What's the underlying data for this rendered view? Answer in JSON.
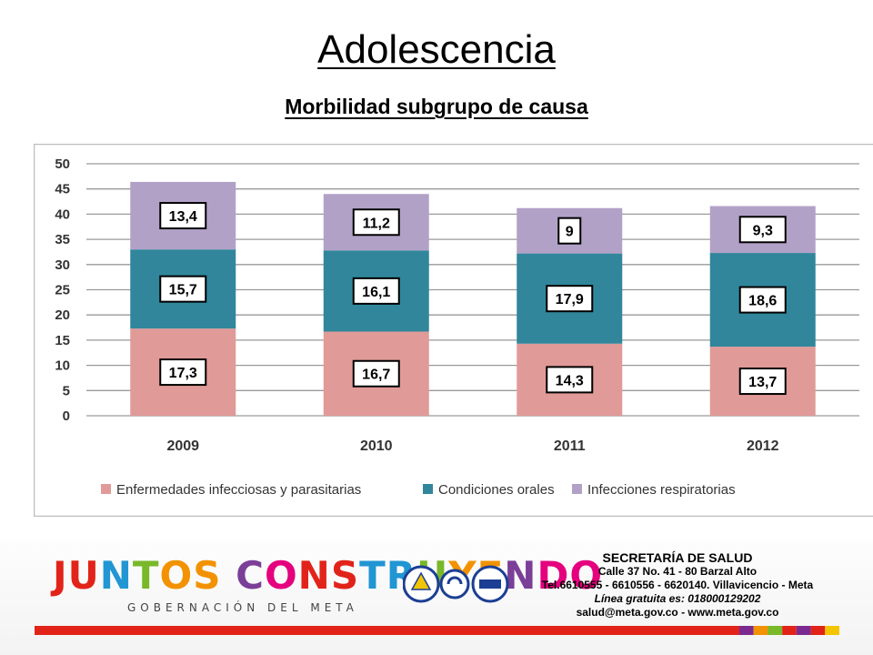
{
  "slide": {
    "title": "Adolescencia",
    "subtitle": "Morbilidad subgrupo de causa"
  },
  "chart_data": {
    "type": "bar",
    "stacked": true,
    "categories": [
      "2009",
      "2010",
      "2011",
      "2012"
    ],
    "series": [
      {
        "name": "Enfermedades infecciosas y parasitarias",
        "color": "#e09a98",
        "values": [
          17.3,
          16.7,
          14.3,
          13.7
        ],
        "labels": [
          "17,3",
          "16,7",
          "14,3",
          "13,7"
        ]
      },
      {
        "name": "Condiciones orales",
        "color": "#31869b",
        "values": [
          15.7,
          16.1,
          17.9,
          18.6
        ],
        "labels": [
          "15,7",
          "16,1",
          "17,9",
          "18,6"
        ]
      },
      {
        "name": "Infecciones respiratorias",
        "color": "#b2a1c7",
        "values": [
          13.4,
          11.2,
          9,
          9.3
        ],
        "labels": [
          "13,4",
          "11,2",
          "9",
          "9,3"
        ]
      }
    ],
    "ylim": [
      0,
      50
    ],
    "yticks": [
      0,
      5,
      10,
      15,
      20,
      25,
      30,
      35,
      40,
      45,
      50
    ],
    "grid": true,
    "legend": "bottom"
  },
  "footer": {
    "logo": {
      "text_parts": [
        "JU",
        "N",
        "T",
        "OS",
        " C",
        "O",
        "NS",
        "TR",
        "U",
        "YE",
        "N",
        "DO"
      ],
      "subtitle": "GOBERNACIÓN DEL META"
    },
    "info": {
      "heading": "SECRETARÍA DE SALUD",
      "address": "Calle 37 No. 41 - 80 Barzal Alto",
      "phones": "Tel.6610555 - 6610556 - 6620140. Villavicencio - Meta",
      "hotline": "Línea gratuita es: 018000129202",
      "contact": "salud@meta.gov.co - www.meta.gov.co"
    },
    "bar_colors": [
      "#e2231a",
      "#7b2b8f",
      "#f39200",
      "#78b829",
      "#e2231a",
      "#7b2b8f",
      "#e2231a",
      "#f2c500"
    ]
  }
}
